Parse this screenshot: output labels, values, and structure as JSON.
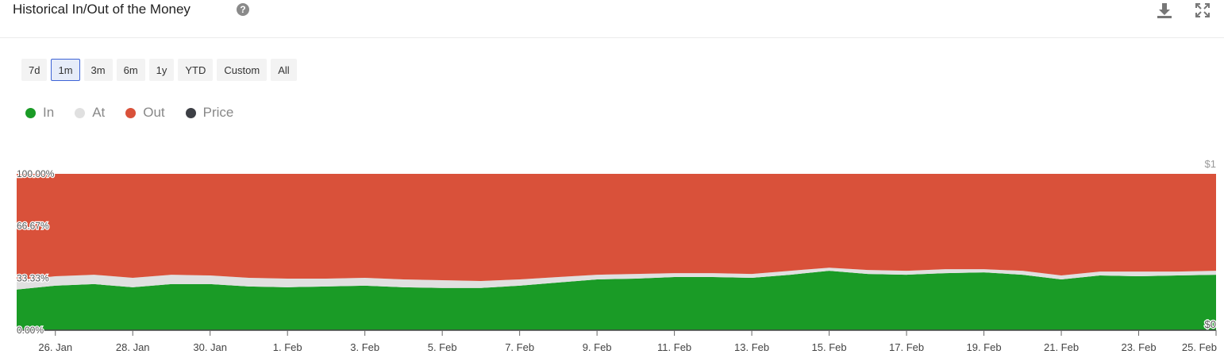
{
  "header": {
    "title": "Historical In/Out of the Money",
    "help_glyph": "?",
    "icons": [
      "help-icon",
      "download-icon",
      "expand-icon"
    ]
  },
  "ranges": [
    {
      "label": "7d",
      "active": false
    },
    {
      "label": "1m",
      "active": true
    },
    {
      "label": "3m",
      "active": false
    },
    {
      "label": "6m",
      "active": false
    },
    {
      "label": "1y",
      "active": false
    },
    {
      "label": "YTD",
      "active": false
    },
    {
      "label": "Custom",
      "active": false
    },
    {
      "label": "All",
      "active": false
    }
  ],
  "legend": [
    {
      "label": "In",
      "color": "#1a9b26"
    },
    {
      "label": "At",
      "color": "#e0e0e0"
    },
    {
      "label": "Out",
      "color": "#d9513a"
    },
    {
      "label": "Price",
      "color": "#3d3f45"
    }
  ],
  "chart_data": {
    "type": "area",
    "stacked": true,
    "x_start": "2024-01-25",
    "x": [
      "25. Jan",
      "26. Jan",
      "27. Jan",
      "28. Jan",
      "29. Jan",
      "30. Jan",
      "31. Jan",
      "1. Feb",
      "2. Feb",
      "3. Feb",
      "4. Feb",
      "5. Feb",
      "6. Feb",
      "7. Feb",
      "8. Feb",
      "9. Feb",
      "10. Feb",
      "11. Feb",
      "12. Feb",
      "13. Feb",
      "14. Feb",
      "15. Feb",
      "16. Feb",
      "17. Feb",
      "18. Feb",
      "19. Feb",
      "20. Feb",
      "21. Feb",
      "22. Feb",
      "23. Feb",
      "24. Feb",
      "25. Feb"
    ],
    "x_tick_labels": [
      "26. Jan",
      "28. Jan",
      "30. Jan",
      "1. Feb",
      "3. Feb",
      "5. Feb",
      "7. Feb",
      "9. Feb",
      "11. Feb",
      "13. Feb",
      "15. Feb",
      "17. Feb",
      "19. Feb",
      "21. Feb",
      "23. Feb",
      "25. Feb"
    ],
    "series": [
      {
        "name": "In",
        "color": "#1a9b26",
        "values": [
          26,
          28.5,
          29.5,
          27.5,
          29.5,
          29.5,
          28,
          27.5,
          28,
          28.5,
          27.5,
          27,
          27,
          28.5,
          30.5,
          32.5,
          33,
          34,
          34,
          33.5,
          35.5,
          38,
          36,
          35.5,
          36.5,
          37,
          35.5,
          32.5,
          35,
          34.5,
          35,
          35.5
        ]
      },
      {
        "name": "At",
        "color": "#e0e0e0",
        "values": [
          6,
          6,
          6,
          6,
          6,
          5.5,
          5.5,
          5.5,
          5,
          5,
          5,
          5,
          4.5,
          4,
          3.5,
          3,
          3,
          2.5,
          2.5,
          2.5,
          2.5,
          2,
          2.5,
          2.5,
          2.5,
          2,
          2.5,
          2.5,
          2.5,
          3,
          2.5,
          2.5
        ]
      },
      {
        "name": "Out",
        "color": "#d9513a",
        "values": [
          68,
          65.5,
          64.5,
          66.5,
          64.5,
          65,
          66.5,
          67,
          67,
          66.5,
          67.5,
          68,
          68.5,
          67.5,
          66,
          64.5,
          64,
          63.5,
          63.5,
          64,
          62,
          60,
          61.5,
          62,
          61,
          61,
          62,
          65,
          62.5,
          62.5,
          62.5,
          62
        ]
      },
      {
        "name": "Price",
        "color": "#3d3f45",
        "values": [
          0,
          0,
          0,
          0,
          0,
          0,
          0,
          0,
          0,
          0,
          0,
          0,
          0,
          0,
          0,
          0,
          0,
          0,
          0,
          0,
          0,
          0,
          0,
          0,
          0,
          0,
          0,
          0,
          0,
          0,
          0,
          0
        ]
      }
    ],
    "y_tick_labels": [
      "0.00%",
      "33.33%",
      "66.67%",
      "100.00%"
    ],
    "y_ticks": [
      0,
      33.33,
      66.67,
      100
    ],
    "ylim": [
      0,
      100
    ],
    "y2_tick_labels": [
      "$0",
      "$1"
    ],
    "y2_ticks": [
      0,
      1
    ],
    "y2lim": [
      0,
      1
    ]
  }
}
